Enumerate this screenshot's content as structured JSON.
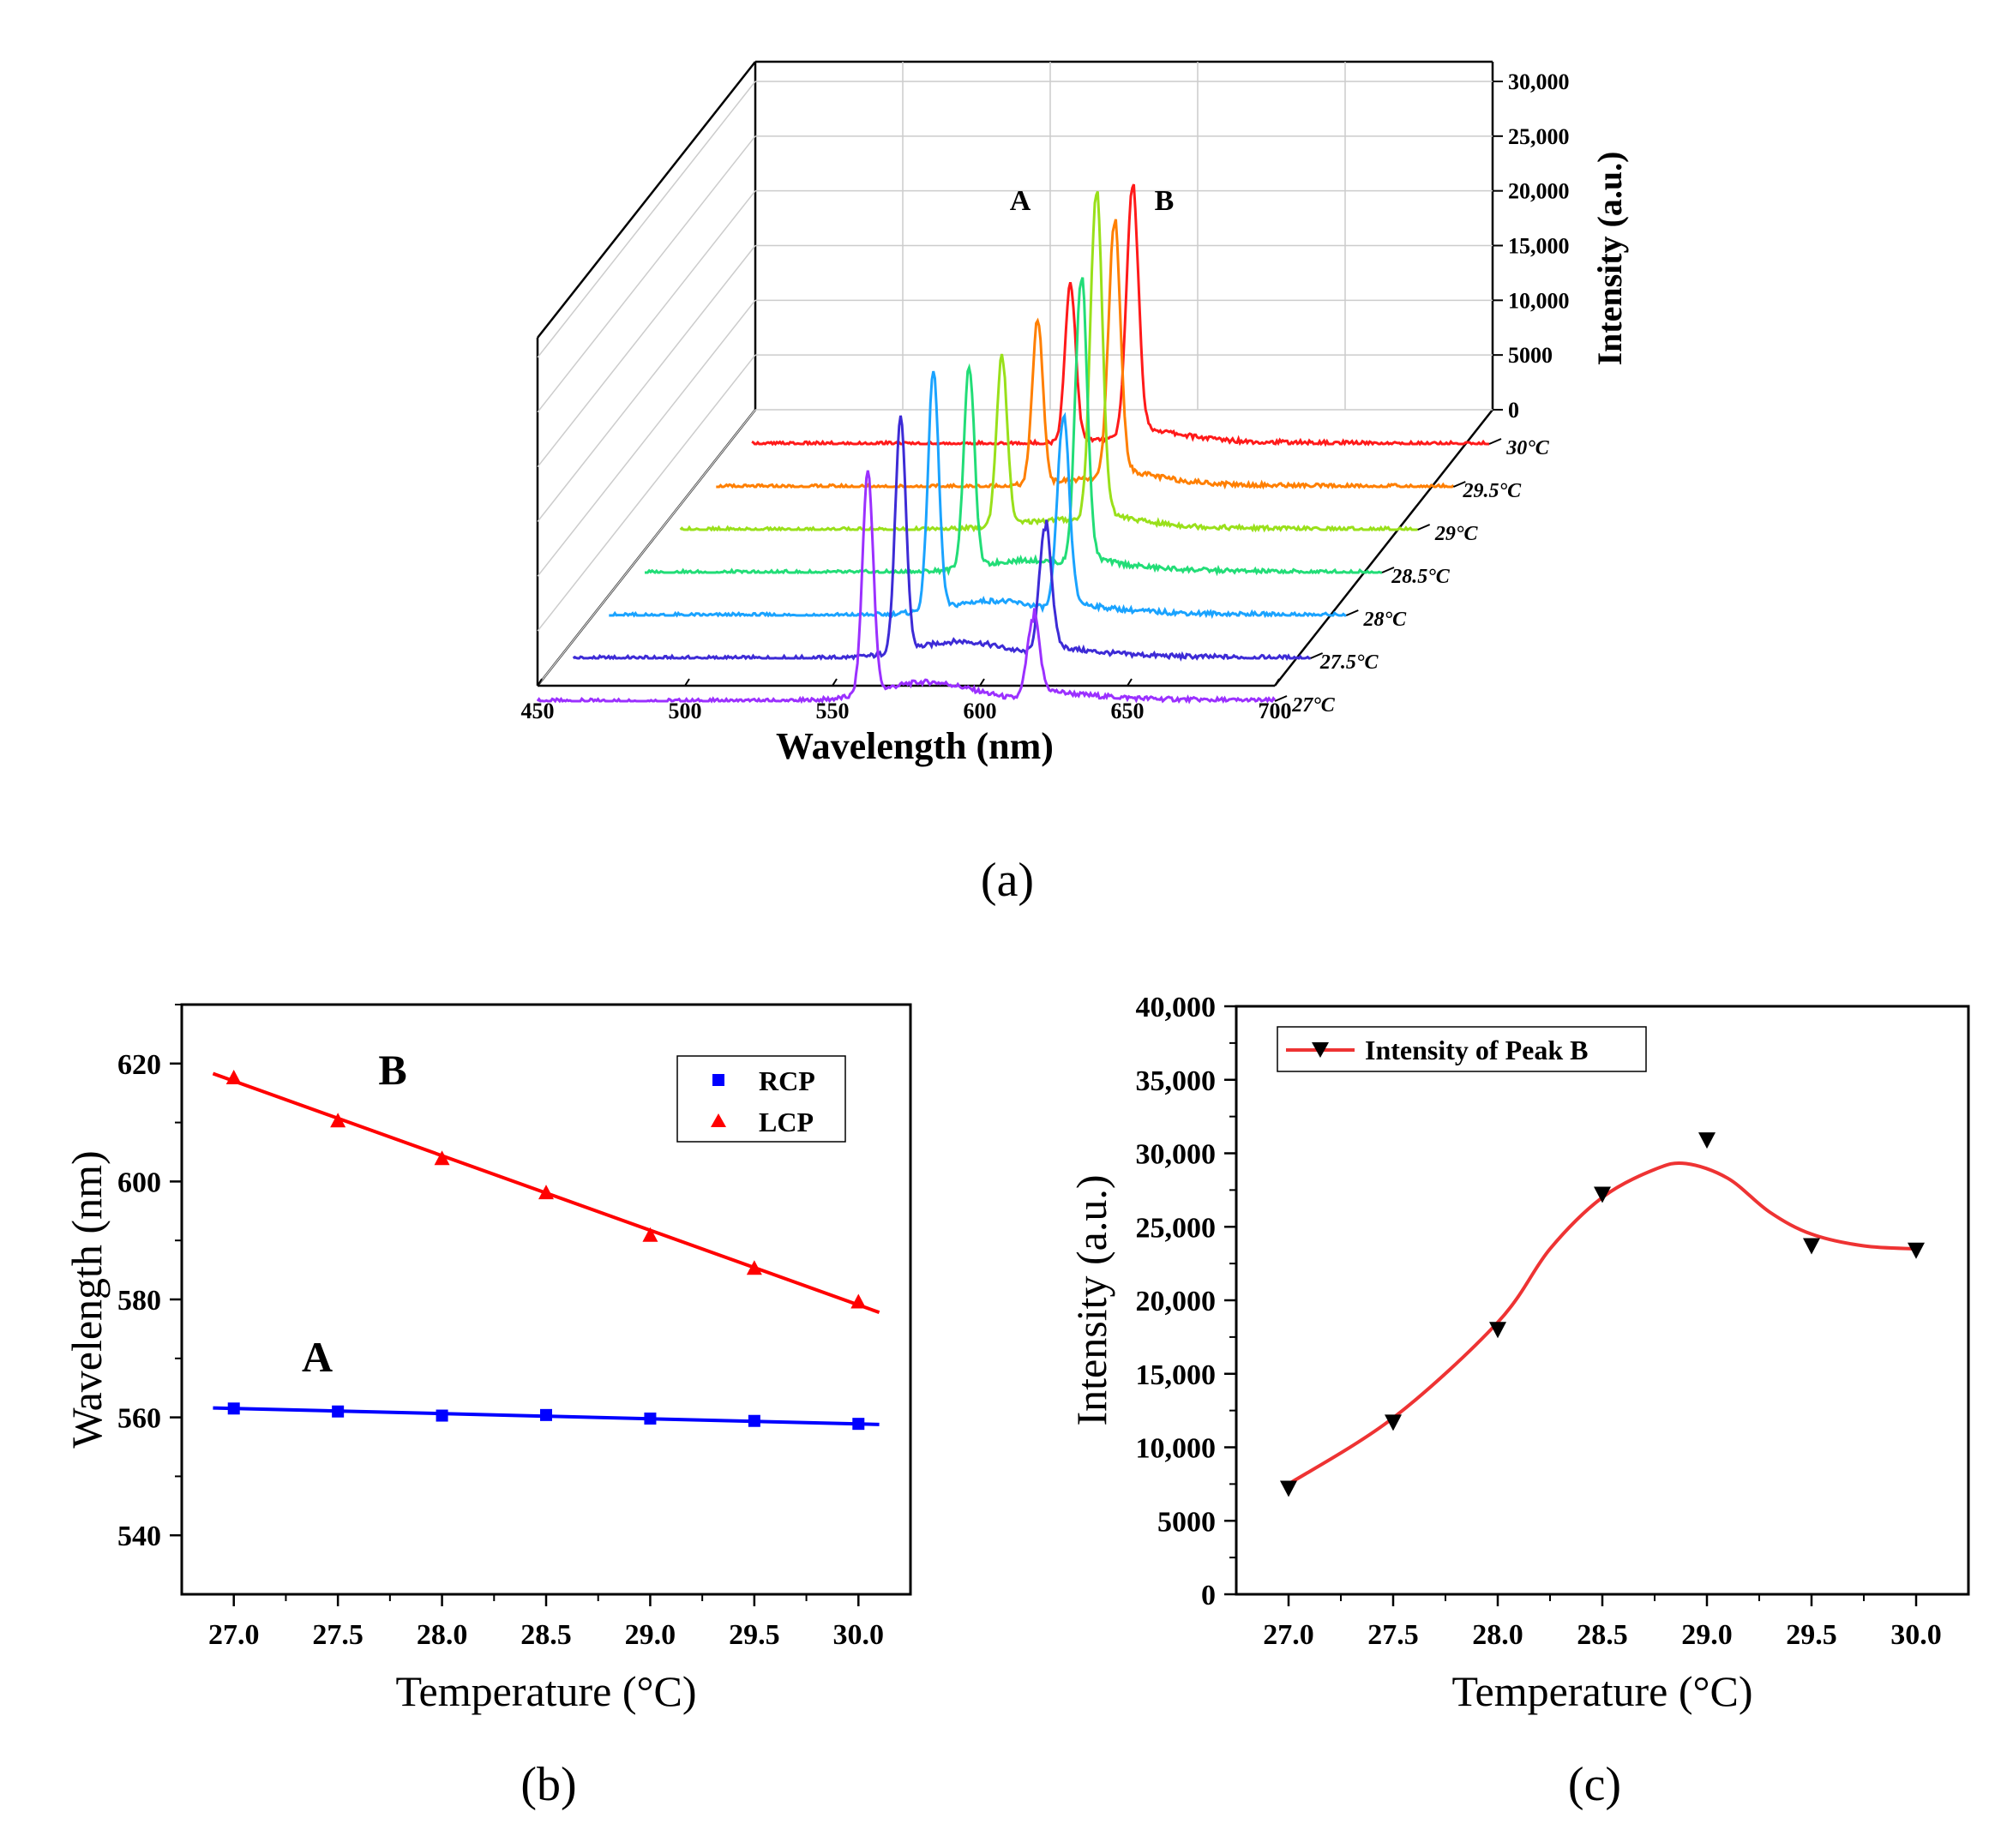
{
  "figure": {
    "panel_labels": [
      "(a)",
      "(b)",
      "(c)"
    ]
  },
  "chart_data": [
    {
      "id": "a",
      "type": "line",
      "projection": "3d-waterfall",
      "title": "",
      "xlabel": "Wavelength (nm)",
      "ylabel": "Intensity (a.u.)",
      "xlim": [
        450,
        700
      ],
      "zlim": [
        0,
        30000
      ],
      "x_ticks": [
        "450",
        "500",
        "550",
        "600",
        "650",
        "700"
      ],
      "z_ticks": [
        "0",
        "5000",
        "10,000",
        "15,000",
        "20,000",
        "25,000",
        "30,000"
      ],
      "annotations": [
        "A",
        "B"
      ],
      "series": [
        {
          "name": "27°C",
          "color": "#9b30ff",
          "peakA": {
            "x": 562,
            "y": 21000
          },
          "peakB": {
            "x": 618,
            "y": 7500
          }
        },
        {
          "name": "27.5°C",
          "color": "#3d2bd6",
          "peakA": {
            "x": 561,
            "y": 22000
          },
          "peakB": {
            "x": 610,
            "y": 12000
          }
        },
        {
          "name": "28°C",
          "color": "#1aa3ff",
          "peakA": {
            "x": 560,
            "y": 22500
          },
          "peakB": {
            "x": 604,
            "y": 18000
          }
        },
        {
          "name": "28.5°C",
          "color": "#22dd77",
          "peakA": {
            "x": 560,
            "y": 19000
          },
          "peakB": {
            "x": 598,
            "y": 27000
          }
        },
        {
          "name": "29°C",
          "color": "#99e01a",
          "peakA": {
            "x": 559,
            "y": 16000
          },
          "peakB": {
            "x": 591,
            "y": 31000
          }
        },
        {
          "name": "29.5°C",
          "color": "#ff7f00",
          "peakA": {
            "x": 559,
            "y": 15500
          },
          "peakB": {
            "x": 585,
            "y": 24000
          }
        },
        {
          "name": "30°C",
          "color": "#ff1a1a",
          "peakA": {
            "x": 558,
            "y": 15000
          },
          "peakB": {
            "x": 579,
            "y": 23500
          }
        }
      ]
    },
    {
      "id": "b",
      "type": "scatter",
      "title": "",
      "xlabel": "Temperature (°C)",
      "ylabel": "Wavelength (nm)",
      "xlim": [
        26.75,
        30.25
      ],
      "ylim": [
        530,
        630
      ],
      "x_ticks": [
        "27.0",
        "27.5",
        "28.0",
        "28.5",
        "29.0",
        "29.5",
        "30.0"
      ],
      "y_ticks": [
        "540",
        "560",
        "580",
        "600",
        "620"
      ],
      "annotations": [
        "B",
        "A"
      ],
      "legend": "top-right",
      "x": [
        27.0,
        27.5,
        28.0,
        28.5,
        29.0,
        29.5,
        30.0
      ],
      "series": [
        {
          "name": "RCP",
          "color": "#0000ff",
          "marker": "square",
          "values": [
            561.5,
            561.0,
            560.3,
            560.4,
            559.8,
            559.4,
            558.9
          ],
          "fit": {
            "x": [
              26.9,
              30.1
            ],
            "y": [
              561.6,
              558.8
            ]
          }
        },
        {
          "name": "LCP",
          "color": "#ff0000",
          "marker": "triangle-up",
          "values": [
            617.5,
            610.2,
            603.8,
            598.0,
            590.8,
            585.2,
            579.5
          ],
          "fit": {
            "x": [
              26.9,
              30.1
            ],
            "y": [
              618.3,
              577.8
            ]
          }
        }
      ]
    },
    {
      "id": "c",
      "type": "line",
      "title": "",
      "xlabel": "Temperature (°C)",
      "ylabel": "Intensity (a.u.)",
      "xlim": [
        26.75,
        30.25
      ],
      "ylim": [
        0,
        40000
      ],
      "x_ticks": [
        "27.0",
        "27.5",
        "28.0",
        "28.5",
        "29.0",
        "29.5",
        "30.0"
      ],
      "y_ticks": [
        "0",
        "5000",
        "10,000",
        "15,000",
        "20,000",
        "25,000",
        "30,000",
        "35,000",
        "40,000"
      ],
      "legend": "top-left",
      "series": [
        {
          "name": "Intensity of Peak B",
          "color": "#000000",
          "marker": "triangle-down",
          "x": [
            27.0,
            27.5,
            28.0,
            28.5,
            29.0,
            29.5,
            30.0
          ],
          "values": [
            7200,
            11700,
            18000,
            27200,
            30900,
            23700,
            23400
          ]
        },
        {
          "name": "fit",
          "color": "#ff0000",
          "x": [
            27.0,
            27.5,
            28.0,
            28.25,
            28.5,
            28.75,
            28.9,
            29.1,
            29.3,
            29.5,
            29.75,
            30.0
          ],
          "values": [
            7500,
            12000,
            18500,
            23500,
            27000,
            28900,
            29300,
            28300,
            26000,
            24500,
            23700,
            23500
          ]
        }
      ]
    }
  ]
}
